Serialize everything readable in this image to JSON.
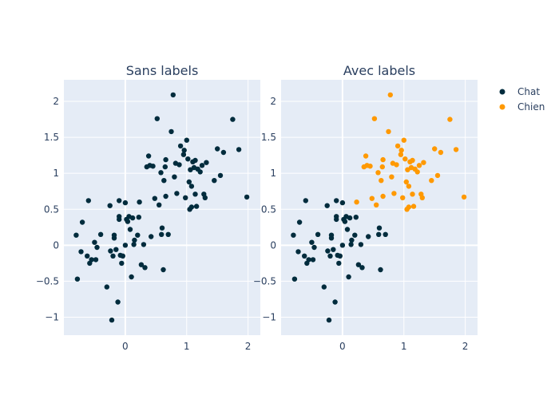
{
  "chart_data": [
    {
      "type": "scatter",
      "title": "Sans labels",
      "xlim": [
        -1,
        2.2
      ],
      "ylim": [
        -1.25,
        2.3
      ],
      "xticks": [
        "0",
        "1",
        "2"
      ],
      "yticks": [
        "2",
        "1.5",
        "1",
        "0.5",
        "0",
        "−0.5",
        "−1"
      ],
      "series": [
        {
          "name": "Chat",
          "color": "#002c3d",
          "points": [
            [
              -0.78,
              -0.47
            ],
            [
              -0.8,
              0.14
            ],
            [
              -0.72,
              -0.09
            ],
            [
              -0.7,
              0.32
            ],
            [
              -0.62,
              -0.15
            ],
            [
              -0.6,
              0.62
            ],
            [
              -0.58,
              -0.25
            ],
            [
              -0.55,
              -0.2
            ],
            [
              -0.5,
              0.04
            ],
            [
              -0.48,
              -0.2
            ],
            [
              -0.46,
              -0.03
            ],
            [
              -0.4,
              0.15
            ],
            [
              -0.3,
              -0.58
            ],
            [
              -0.25,
              0.55
            ],
            [
              -0.24,
              -0.08
            ],
            [
              -0.22,
              -1.04
            ],
            [
              -0.2,
              -0.15
            ],
            [
              -0.18,
              0.1
            ],
            [
              -0.18,
              0.14
            ],
            [
              -0.15,
              -0.06
            ],
            [
              -0.12,
              -0.79
            ],
            [
              -0.1,
              0.62
            ],
            [
              -0.1,
              0.4
            ],
            [
              -0.1,
              0.36
            ],
            [
              -0.08,
              -0.14
            ],
            [
              -0.06,
              -0.25
            ],
            [
              -0.04,
              -0.15
            ],
            [
              0.0,
              0.59
            ],
            [
              0.0,
              0.0
            ],
            [
              0.02,
              0.36
            ],
            [
              0.04,
              0.33
            ],
            [
              0.06,
              0.4
            ],
            [
              0.08,
              0.22
            ],
            [
              0.1,
              -0.44
            ],
            [
              0.12,
              0.38
            ],
            [
              0.14,
              0.01
            ],
            [
              0.15,
              0.07
            ],
            [
              0.2,
              0.14
            ],
            [
              0.22,
              0.39
            ],
            [
              0.23,
              0.6
            ],
            [
              0.26,
              -0.27
            ],
            [
              0.3,
              0.01
            ],
            [
              0.32,
              -0.31
            ],
            [
              0.35,
              1.09
            ],
            [
              0.38,
              1.24
            ],
            [
              0.4,
              1.11
            ],
            [
              0.42,
              0.12
            ],
            [
              0.45,
              1.1
            ],
            [
              0.48,
              0.65
            ],
            [
              0.52,
              1.76
            ],
            [
              0.55,
              0.56
            ],
            [
              0.58,
              1.01
            ],
            [
              0.59,
              0.15
            ],
            [
              0.6,
              0.24
            ],
            [
              0.62,
              -0.34
            ],
            [
              0.63,
              0.9
            ],
            [
              0.65,
              1.09
            ],
            [
              0.66,
              1.19
            ],
            [
              0.66,
              0.68
            ],
            [
              0.7,
              0.15
            ],
            [
              0.75,
              1.58
            ],
            [
              0.78,
              2.09
            ],
            [
              0.8,
              0.95
            ],
            [
              0.82,
              1.14
            ],
            [
              0.84,
              0.72
            ],
            [
              0.88,
              1.12
            ],
            [
              0.9,
              1.38
            ],
            [
              0.95,
              1.26
            ],
            [
              0.96,
              1.32
            ],
            [
              0.98,
              0.66
            ],
            [
              1.0,
              1.46
            ],
            [
              1.02,
              1.2
            ],
            [
              1.04,
              0.88
            ],
            [
              1.05,
              0.5
            ],
            [
              1.06,
              1.05
            ],
            [
              1.08,
              0.53
            ],
            [
              1.08,
              0.82
            ],
            [
              1.1,
              1.16
            ],
            [
              1.12,
              1.08
            ],
            [
              1.14,
              0.71
            ],
            [
              1.14,
              1.18
            ],
            [
              1.16,
              0.54
            ],
            [
              1.18,
              1.06
            ],
            [
              1.22,
              1.02
            ],
            [
              1.25,
              1.11
            ],
            [
              1.28,
              0.71
            ],
            [
              1.3,
              0.66
            ],
            [
              1.32,
              1.15
            ],
            [
              1.45,
              0.9
            ],
            [
              1.5,
              1.34
            ],
            [
              1.55,
              0.97
            ],
            [
              1.6,
              1.29
            ],
            [
              1.75,
              1.75
            ],
            [
              1.85,
              1.33
            ],
            [
              1.98,
              0.67
            ]
          ]
        }
      ]
    },
    {
      "type": "scatter",
      "title": "Avec labels",
      "xlim": [
        -1,
        2.2
      ],
      "ylim": [
        -1.25,
        2.3
      ],
      "xticks": [
        "0",
        "1",
        "2"
      ],
      "yticks": [
        "2",
        "1.5",
        "1",
        "0.5",
        "0",
        "−0.5",
        "−1"
      ],
      "series": [
        {
          "name": "Chat",
          "color": "#002c3d",
          "points": [
            [
              -0.78,
              -0.47
            ],
            [
              -0.8,
              0.14
            ],
            [
              -0.72,
              -0.09
            ],
            [
              -0.7,
              0.32
            ],
            [
              -0.62,
              -0.15
            ],
            [
              -0.6,
              0.62
            ],
            [
              -0.58,
              -0.25
            ],
            [
              -0.55,
              -0.2
            ],
            [
              -0.5,
              0.04
            ],
            [
              -0.48,
              -0.2
            ],
            [
              -0.46,
              -0.03
            ],
            [
              -0.4,
              0.15
            ],
            [
              -0.3,
              -0.58
            ],
            [
              -0.25,
              0.55
            ],
            [
              -0.24,
              -0.08
            ],
            [
              -0.22,
              -1.04
            ],
            [
              -0.2,
              -0.15
            ],
            [
              -0.18,
              0.1
            ],
            [
              -0.18,
              0.14
            ],
            [
              -0.15,
              -0.06
            ],
            [
              -0.12,
              -0.79
            ],
            [
              -0.1,
              0.62
            ],
            [
              -0.1,
              0.4
            ],
            [
              -0.1,
              0.36
            ],
            [
              -0.08,
              -0.14
            ],
            [
              -0.06,
              -0.25
            ],
            [
              -0.04,
              -0.15
            ],
            [
              0.0,
              0.59
            ],
            [
              0.0,
              0.0
            ],
            [
              0.02,
              0.36
            ],
            [
              0.04,
              0.33
            ],
            [
              0.06,
              0.4
            ],
            [
              0.08,
              0.22
            ],
            [
              0.1,
              -0.44
            ],
            [
              0.12,
              0.38
            ],
            [
              0.14,
              0.01
            ],
            [
              0.15,
              0.07
            ],
            [
              0.2,
              0.14
            ],
            [
              0.22,
              0.39
            ],
            [
              0.26,
              -0.27
            ],
            [
              0.3,
              0.01
            ],
            [
              0.32,
              -0.31
            ],
            [
              0.42,
              0.12
            ],
            [
              0.59,
              0.15
            ],
            [
              0.6,
              0.24
            ],
            [
              0.62,
              -0.34
            ],
            [
              0.7,
              0.15
            ]
          ]
        },
        {
          "name": "Chien",
          "color": "#ff9900",
          "points": [
            [
              0.23,
              0.6
            ],
            [
              0.35,
              1.09
            ],
            [
              0.38,
              1.24
            ],
            [
              0.4,
              1.11
            ],
            [
              0.45,
              1.1
            ],
            [
              0.48,
              0.65
            ],
            [
              0.52,
              1.76
            ],
            [
              0.55,
              0.56
            ],
            [
              0.58,
              1.01
            ],
            [
              0.63,
              0.9
            ],
            [
              0.65,
              1.09
            ],
            [
              0.66,
              1.19
            ],
            [
              0.66,
              0.68
            ],
            [
              0.75,
              1.58
            ],
            [
              0.78,
              2.09
            ],
            [
              0.8,
              0.95
            ],
            [
              0.82,
              1.14
            ],
            [
              0.84,
              0.72
            ],
            [
              0.88,
              1.12
            ],
            [
              0.9,
              1.38
            ],
            [
              0.95,
              1.26
            ],
            [
              0.96,
              1.32
            ],
            [
              0.98,
              0.66
            ],
            [
              1.0,
              1.46
            ],
            [
              1.02,
              1.2
            ],
            [
              1.04,
              0.88
            ],
            [
              1.05,
              0.5
            ],
            [
              1.06,
              1.05
            ],
            [
              1.08,
              0.53
            ],
            [
              1.08,
              0.82
            ],
            [
              1.1,
              1.16
            ],
            [
              1.12,
              1.08
            ],
            [
              1.14,
              0.71
            ],
            [
              1.14,
              1.18
            ],
            [
              1.16,
              0.54
            ],
            [
              1.18,
              1.06
            ],
            [
              1.22,
              1.02
            ],
            [
              1.25,
              1.11
            ],
            [
              1.28,
              0.71
            ],
            [
              1.3,
              0.66
            ],
            [
              1.32,
              1.15
            ],
            [
              1.45,
              0.9
            ],
            [
              1.5,
              1.34
            ],
            [
              1.55,
              0.97
            ],
            [
              1.6,
              1.29
            ],
            [
              1.75,
              1.75
            ],
            [
              1.85,
              1.33
            ],
            [
              1.98,
              0.67
            ]
          ]
        }
      ]
    }
  ],
  "legend": {
    "placement": "top-right",
    "items": [
      {
        "name": "Chat",
        "color": "#002c3d"
      },
      {
        "name": "Chien",
        "color": "#ff9900"
      }
    ]
  },
  "colors": {
    "plot_bg": "#e5ecf6",
    "grid": "#ffffff",
    "text": "#2a3f5f"
  }
}
